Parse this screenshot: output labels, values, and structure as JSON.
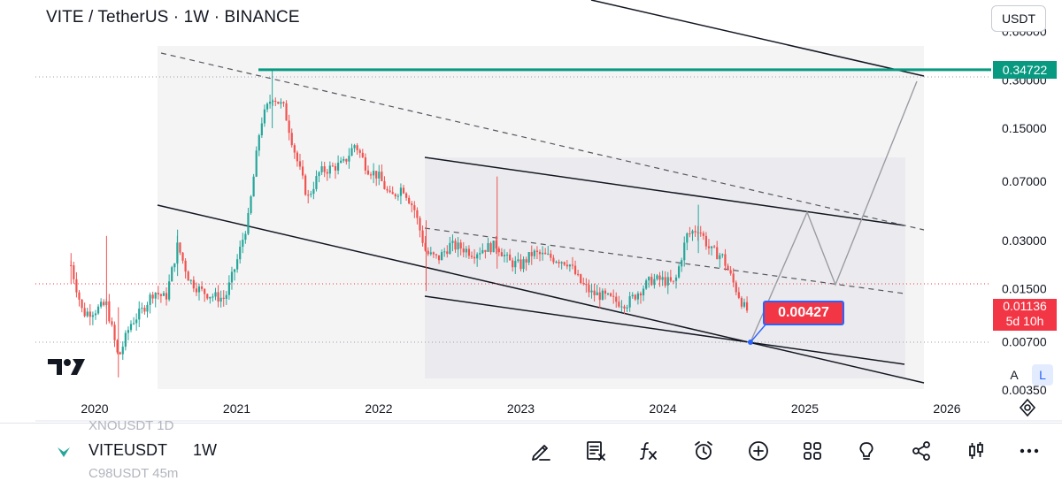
{
  "header": {
    "title": "VITE / TetherUS · 1W · BINANCE",
    "currency": "USDT"
  },
  "chart_data": {
    "type": "candlestick",
    "scale": "log",
    "x_ticks": [
      "2020",
      "2021",
      "2022",
      "2023",
      "2024",
      "2025",
      "2026"
    ],
    "y_ticks": [
      "0.60000",
      "0.30000",
      "0.15000",
      "0.07000",
      "0.03000",
      "0.01500",
      "0.00700",
      "0.00350"
    ],
    "y_tick_values": [
      0.6,
      0.3,
      0.15,
      0.07,
      0.03,
      0.015,
      0.007,
      0.0035
    ],
    "current_price": "0.01136",
    "countdown": "5d 10h",
    "resistance_level": "0.34722",
    "target_callout": "0.00427",
    "colors": {
      "up": "#26a69a",
      "down": "#ef5350",
      "resistance": "#089981",
      "callout": "#f23645",
      "accent": "#2962ff"
    },
    "price_path": [
      [
        "2019-11",
        0.021
      ],
      [
        "2019-12",
        0.0105
      ],
      [
        "2020-01",
        0.011
      ],
      [
        "2020-02",
        0.012
      ],
      [
        "2020-03",
        0.0055
      ],
      [
        "2020-04",
        0.009
      ],
      [
        "2020-05",
        0.011
      ],
      [
        "2020-06",
        0.0145
      ],
      [
        "2020-07",
        0.013
      ],
      [
        "2020-08",
        0.028
      ],
      [
        "2020-09",
        0.017
      ],
      [
        "2020-10",
        0.0145
      ],
      [
        "2020-11",
        0.0135
      ],
      [
        "2020-12",
        0.013
      ],
      [
        "2021-01",
        0.022
      ],
      [
        "2021-02",
        0.042
      ],
      [
        "2021-03",
        0.16
      ],
      [
        "2021-04",
        0.24
      ],
      [
        "2021-05",
        0.2
      ],
      [
        "2021-06",
        0.1
      ],
      [
        "2021-07",
        0.055
      ],
      [
        "2021-08",
        0.08
      ],
      [
        "2021-09",
        0.085
      ],
      [
        "2021-10",
        0.09
      ],
      [
        "2021-11",
        0.12
      ],
      [
        "2021-12",
        0.085
      ],
      [
        "2022-01",
        0.075
      ],
      [
        "2022-02",
        0.055
      ],
      [
        "2022-03",
        0.065
      ],
      [
        "2022-04",
        0.047
      ],
      [
        "2022-05",
        0.025
      ],
      [
        "2022-06",
        0.023
      ],
      [
        "2022-07",
        0.028
      ],
      [
        "2022-08",
        0.027
      ],
      [
        "2022-09",
        0.025
      ],
      [
        "2022-10",
        0.027
      ],
      [
        "2022-11",
        0.028
      ],
      [
        "2022-12",
        0.022
      ],
      [
        "2023-01",
        0.021
      ],
      [
        "2023-02",
        0.025
      ],
      [
        "2023-03",
        0.024
      ],
      [
        "2023-04",
        0.023
      ],
      [
        "2023-05",
        0.022
      ],
      [
        "2023-06",
        0.0165
      ],
      [
        "2023-07",
        0.014
      ],
      [
        "2023-08",
        0.0135
      ],
      [
        "2023-09",
        0.0125
      ],
      [
        "2023-10",
        0.0122
      ],
      [
        "2023-11",
        0.0145
      ],
      [
        "2023-12",
        0.017
      ],
      [
        "2024-01",
        0.017
      ],
      [
        "2024-02",
        0.016
      ],
      [
        "2024-03",
        0.032
      ],
      [
        "2024-04",
        0.036
      ],
      [
        "2024-05",
        0.026
      ],
      [
        "2024-06",
        0.024
      ],
      [
        "2024-07",
        0.016
      ],
      [
        "2024-08",
        0.011
      ]
    ],
    "spikes": [
      {
        "date": "2019-11",
        "high": 0.025,
        "low": 0.016
      },
      {
        "date": "2020-03",
        "high": 0.0115,
        "low": 0.0042
      },
      {
        "date": "2020-02",
        "high": 0.032,
        "low": 0.009
      },
      {
        "date": "2020-08",
        "high": 0.035,
        "low": 0.018
      },
      {
        "date": "2021-04",
        "high": 0.34722,
        "low": 0.15
      },
      {
        "date": "2022-05",
        "high": 0.04,
        "low": 0.0145
      },
      {
        "date": "2022-11",
        "high": 0.075,
        "low": 0.02
      },
      {
        "date": "2024-04",
        "high": 0.05,
        "low": 0.025
      }
    ]
  },
  "bottom": {
    "ghost_top": "XNOUSDT  1D",
    "symbol": "VITEUSDT",
    "timeframe": "1W",
    "ghost_bottom": "C98USDT  45m"
  },
  "scale_buttons": {
    "auto": "A",
    "log": "L"
  }
}
